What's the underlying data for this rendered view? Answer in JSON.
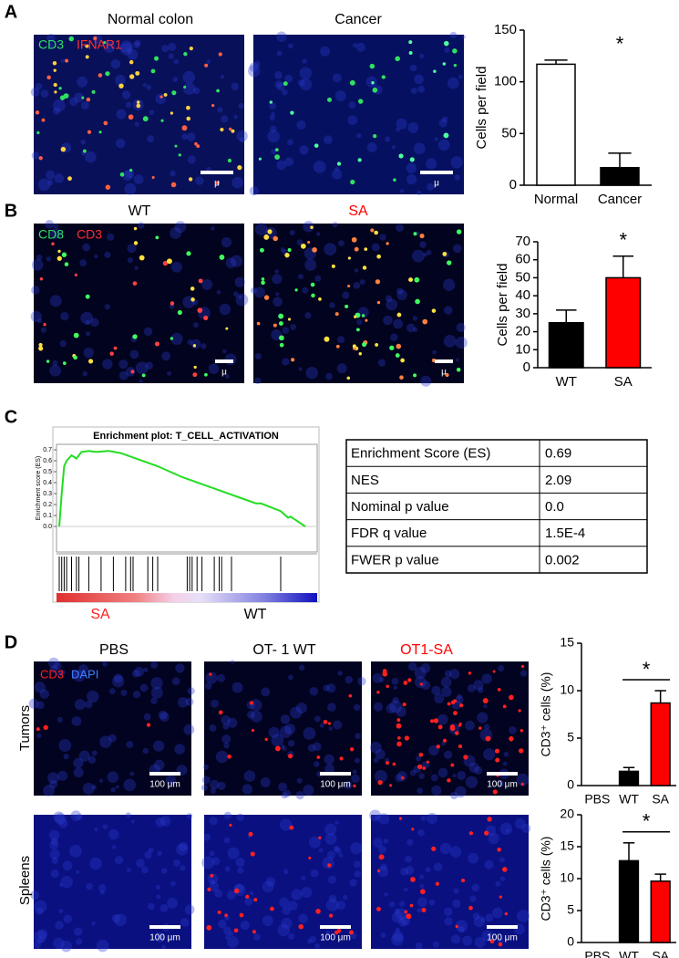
{
  "panels": [
    "A",
    "B",
    "C",
    "D"
  ],
  "panel_a": {
    "titles": [
      "Normal colon",
      "Cancer"
    ],
    "stains": [
      "CD3",
      "IFNAR1"
    ],
    "scale_labels": [
      "μ",
      "μ"
    ]
  },
  "panel_b": {
    "titles": [
      "WT",
      "SA"
    ],
    "stains": [
      "CD8",
      "CD3"
    ],
    "scale_labels": [
      "μ",
      "μ"
    ]
  },
  "panel_c": {
    "table": {
      "rows": [
        [
          "Enrichment Score (ES)",
          "0.69"
        ],
        [
          "NES",
          "2.09"
        ],
        [
          "Nominal p value",
          "0.0"
        ],
        [
          "FDR q value",
          "1.5E-4"
        ],
        [
          "FWER p value",
          "0.002"
        ]
      ]
    }
  },
  "panel_d": {
    "titles": [
      "PBS",
      "OT- 1 WT",
      "OT1-SA"
    ],
    "stains": [
      "CD3",
      "DAPI"
    ],
    "rows": [
      "Tumors",
      "Spleens"
    ],
    "scale_labels": [
      "100 μm",
      "100 μm",
      "100 μm",
      "100 μm",
      "100 μm",
      "100 μm"
    ]
  },
  "chart_data": [
    {
      "type": "bar",
      "ylabel": "Cells per field",
      "categories": [
        "Normal",
        "Cancer"
      ],
      "values": [
        117,
        17
      ],
      "errors": [
        4,
        14
      ],
      "colors": [
        "#ffffff",
        "#000000"
      ],
      "ylim": [
        0,
        150
      ],
      "yticks": [
        0,
        50,
        100,
        150
      ],
      "annotation": "*"
    },
    {
      "type": "bar",
      "ylabel": "Cells per field",
      "categories": [
        "WT",
        "SA"
      ],
      "values": [
        25,
        50
      ],
      "errors": [
        7,
        12
      ],
      "colors": [
        "#000000",
        "#ff0000"
      ],
      "ylim": [
        0,
        70
      ],
      "yticks": [
        0,
        10,
        20,
        30,
        40,
        50,
        60,
        70
      ],
      "annotation": "*"
    },
    {
      "type": "line",
      "title": "Enrichment plot: T_CELL_ACTIVATION",
      "ylabel": "Enrichment score (ES)",
      "color": "#22dd22",
      "x": [
        0,
        1,
        2,
        3,
        5,
        7,
        9,
        12,
        15,
        20,
        25,
        30,
        40,
        50,
        60,
        70,
        75,
        80,
        82,
        90,
        93,
        94,
        100
      ],
      "values": [
        0.0,
        0.3,
        0.55,
        0.6,
        0.65,
        0.62,
        0.68,
        0.69,
        0.68,
        0.69,
        0.67,
        0.63,
        0.55,
        0.45,
        0.37,
        0.29,
        0.25,
        0.21,
        0.21,
        0.14,
        0.08,
        0.09,
        0.0
      ],
      "xlim": [
        0,
        100
      ],
      "ylim": [
        -0.05,
        0.75
      ],
      "yticks": [
        {
          "value": 0,
          "label": "0.0"
        },
        0.1,
        0.2,
        0.3,
        0.4,
        0.5,
        0.6,
        0.7
      ],
      "hits": [
        0,
        1,
        2,
        3,
        5,
        7,
        8,
        12,
        17,
        22,
        27,
        29,
        30,
        36,
        38,
        40,
        52,
        53,
        54,
        56,
        58,
        63,
        65,
        66,
        70,
        90
      ],
      "group_labels": [
        "SA",
        "WT"
      ]
    },
    {
      "type": "bar",
      "ylabel": "CD3⁺ cells (%)",
      "categories": [
        "PBS",
        "WT",
        "SA"
      ],
      "values": [
        0,
        1.5,
        8.7
      ],
      "errors": [
        null,
        0.4,
        1.3
      ],
      "colors": [
        "#000000",
        "#000000",
        "#ff0000"
      ],
      "ylim": [
        0,
        15
      ],
      "yticks": [
        0,
        5,
        10,
        15
      ],
      "annotation": "*"
    },
    {
      "type": "bar",
      "ylabel": "CD3⁺ cells (%)",
      "categories": [
        "PBS",
        "WT",
        "SA"
      ],
      "values": [
        0,
        12.8,
        9.6
      ],
      "errors": [
        null,
        2.8,
        1.1
      ],
      "colors": [
        "#000000",
        "#000000",
        "#ff0000"
      ],
      "ylim": [
        0,
        20
      ],
      "yticks": [
        0,
        5,
        10,
        15,
        20
      ],
      "annotation": "*"
    }
  ]
}
